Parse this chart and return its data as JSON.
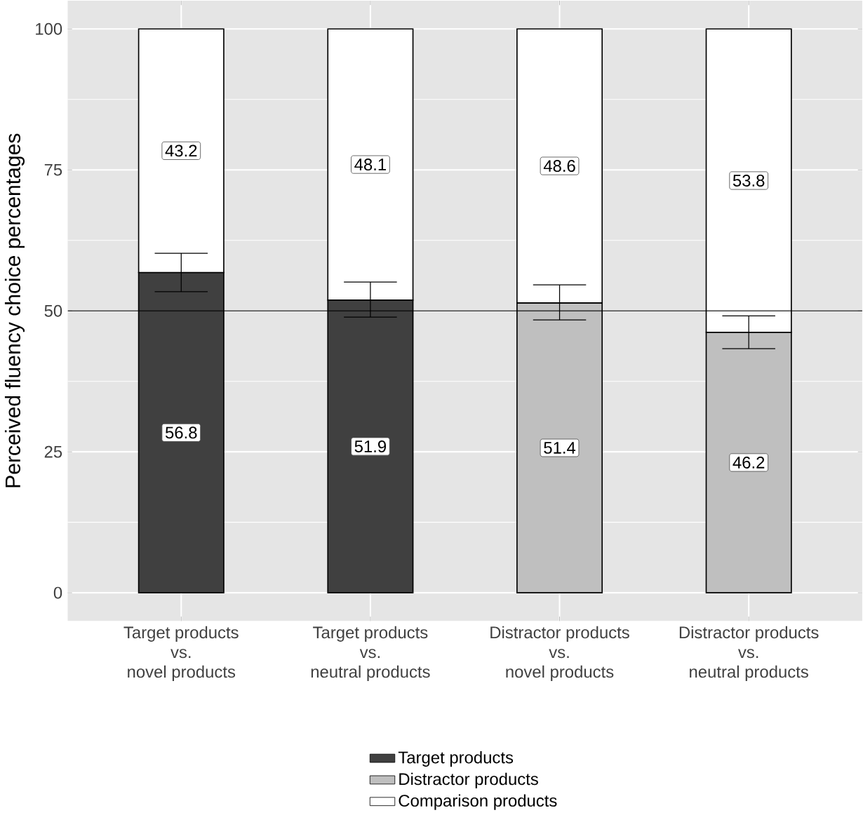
{
  "chart_data": {
    "type": "bar",
    "stacked": true,
    "ylabel": "Perceived fluency choice percentages",
    "categories": [
      "Target products\nvs.\nnovel products",
      "Target products\nvs.\nneutral products",
      "Distractor products\nvs.\nnovel products",
      "Distractor products\nvs.\nneutral products"
    ],
    "series": [
      {
        "name": "Target products",
        "color": "#404040",
        "values": [
          56.8,
          51.9,
          null,
          null
        ],
        "errors": [
          [
            53.4,
            60.2
          ],
          [
            48.9,
            55.1
          ],
          null,
          null
        ]
      },
      {
        "name": "Distractor products",
        "color": "#bfbfbf",
        "values": [
          null,
          null,
          51.4,
          46.2
        ],
        "errors": [
          null,
          null,
          [
            48.4,
            54.6
          ],
          [
            43.3,
            49.1
          ]
        ]
      },
      {
        "name": "Comparison products",
        "color": "#ffffff",
        "values": [
          43.2,
          48.1,
          48.6,
          53.8
        ]
      }
    ],
    "ylim": [
      -5,
      105
    ],
    "yticks": [
      0,
      25,
      50,
      75,
      100
    ],
    "grid": true,
    "legend": "bottom",
    "data_labels": true,
    "ref_lines": [
      {
        "axis": "y",
        "value": 50
      }
    ]
  }
}
